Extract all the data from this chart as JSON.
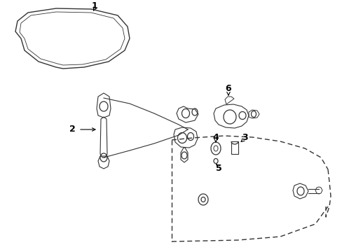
{
  "background_color": "#ffffff",
  "line_color": "#333333",
  "label_color": "#000000",
  "fig_width": 4.89,
  "fig_height": 3.6,
  "dpi": 100,
  "label_fontsize": 9
}
